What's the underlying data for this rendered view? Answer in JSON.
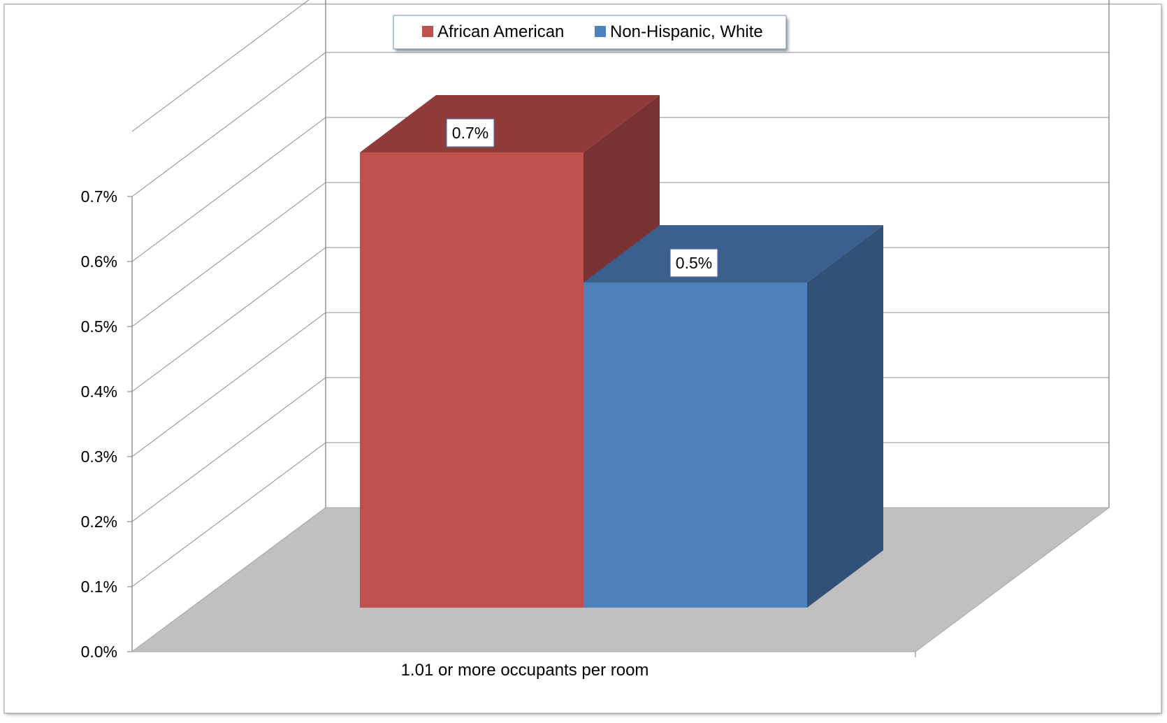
{
  "chart_data": {
    "type": "bar",
    "style": "3d-clustered-column",
    "categories": [
      "1.01 or more occupants per room"
    ],
    "series": [
      {
        "name": "African American",
        "values": [
          0.7
        ],
        "data_labels": [
          "0.7%"
        ],
        "color": "#c0504d"
      },
      {
        "name": "Non-Hispanic, White",
        "values": [
          0.5
        ],
        "data_labels": [
          "0.5%"
        ],
        "color": "#4f81bd"
      }
    ],
    "y_tick_labels": [
      "0.0%",
      "0.1%",
      "0.2%",
      "0.3%",
      "0.4%",
      "0.5%",
      "0.6%",
      "0.7%"
    ],
    "ylim": [
      0,
      0.8
    ],
    "y_unit": "%",
    "title": "",
    "xlabel": "",
    "ylabel": "",
    "grid": true,
    "legend_position": "top-center",
    "colors": {
      "floor": "#c0c0c0",
      "gridline": "#8c8c8c",
      "axis_label": "#000000"
    }
  }
}
